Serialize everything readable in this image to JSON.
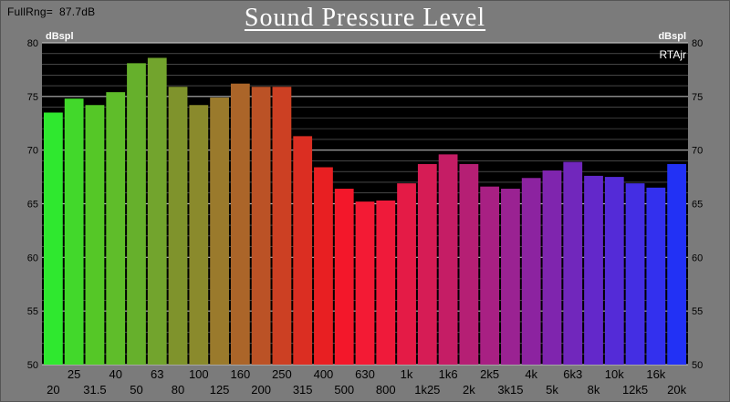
{
  "header": {
    "full_range_label": "FullRng=",
    "full_range_value": "87.7dB",
    "title": "Sound Pressure Level"
  },
  "chart_data": {
    "type": "bar",
    "title": "Sound Pressure Level",
    "ylabel": "dBspl",
    "ylabel_right": "dBspl",
    "annotation": "RTAjr",
    "ylim": [
      50,
      80
    ],
    "yticks": [
      50,
      55,
      60,
      65,
      70,
      75,
      80
    ],
    "grid": true,
    "categories": [
      "20",
      "25",
      "31.5",
      "40",
      "50",
      "63",
      "80",
      "100",
      "125",
      "160",
      "200",
      "250",
      "315",
      "400",
      "500",
      "630",
      "800",
      "1k",
      "1k25",
      "1k6",
      "2k",
      "2k5",
      "3k15",
      "4k",
      "5k",
      "6k3",
      "8k",
      "10k",
      "12k5",
      "16k",
      "20k"
    ],
    "values": [
      73.5,
      74.8,
      74.2,
      75.4,
      78.1,
      78.6,
      75.9,
      74.2,
      74.9,
      76.2,
      75.9,
      75.9,
      71.3,
      68.4,
      66.4,
      65.2,
      65.3,
      66.9,
      68.7,
      69.6,
      68.7,
      66.6,
      66.4,
      67.4,
      68.1,
      68.9,
      67.6,
      67.5,
      66.9,
      66.5,
      68.7
    ],
    "colors": [
      "#2fe82f",
      "#42d82b",
      "#55c727",
      "#5fbd2a",
      "#66b02c",
      "#72a42d",
      "#7f932c",
      "#8a8a2c",
      "#9a7a2c",
      "#ab6529",
      "#bb5226",
      "#cc4023",
      "#db2e22",
      "#e81f22",
      "#f3172a",
      "#f31a34",
      "#ef1a3a",
      "#e41b46",
      "#d61c55",
      "#c51d65",
      "#b51f74",
      "#a82083",
      "#9a2292",
      "#8c23a0",
      "#7f25ae",
      "#7127bc",
      "#6328ca",
      "#542bd7",
      "#442ee3",
      "#3330ee",
      "#2231f5"
    ],
    "background_color": "#000000",
    "grid_color": "#c8c8c8"
  }
}
